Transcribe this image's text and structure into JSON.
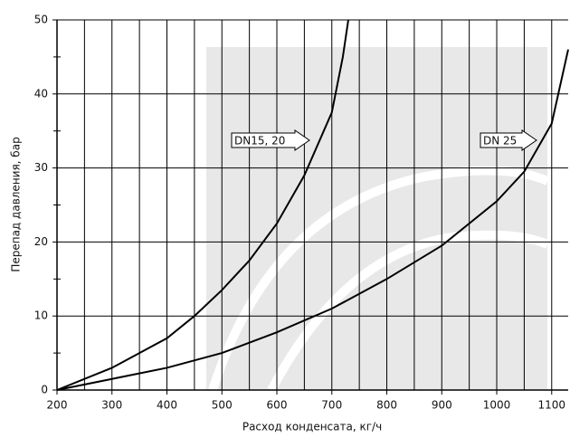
{
  "chart_data": {
    "type": "line",
    "xlabel": "Расход конденсата, кг/ч",
    "ylabel": "Перепад давления, бар",
    "xlim": [
      200,
      1130
    ],
    "ylim": [
      0,
      50
    ],
    "xticks": [
      200,
      300,
      400,
      500,
      600,
      700,
      800,
      900,
      1000,
      1100
    ],
    "xminorticks": [
      250,
      350,
      450,
      550,
      650,
      750,
      850,
      950,
      1050
    ],
    "yticks": [
      0,
      10,
      20,
      30,
      40,
      50
    ],
    "yminorticks": [
      5,
      15,
      25,
      35,
      45
    ],
    "grid": true,
    "series": [
      {
        "name": "DN15, 20",
        "color": "#000000",
        "x": [
          200,
          300,
          400,
          450,
          500,
          550,
          600,
          650,
          700,
          720,
          730
        ],
        "values": [
          0,
          3,
          7,
          10,
          13.5,
          17.5,
          22.5,
          29,
          37.5,
          45,
          50
        ]
      },
      {
        "name": "DN 25",
        "color": "#000000",
        "x": [
          200,
          300,
          400,
          500,
          600,
          700,
          800,
          900,
          1000,
          1050,
          1100,
          1130
        ],
        "values": [
          0,
          1.5,
          3,
          5,
          7.8,
          11,
          15,
          19.5,
          25.5,
          29.5,
          36,
          46
        ]
      }
    ]
  }
}
